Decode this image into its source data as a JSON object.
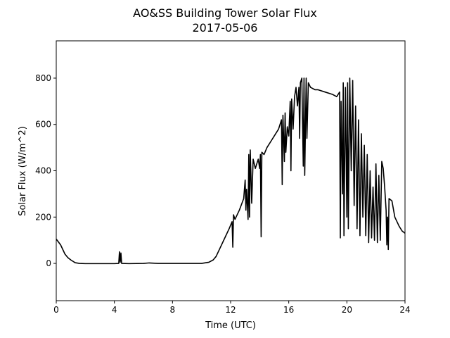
{
  "chart_data": {
    "type": "line",
    "title": "AO&SS Building Tower Solar Flux",
    "subtitle": "2017-05-06",
    "xlabel": "Time (UTC)",
    "ylabel": "Solar Flux (W/m^2)",
    "xlim": [
      0,
      24
    ],
    "xticks": [
      0,
      4,
      8,
      12,
      16,
      20,
      24
    ],
    "ylim": [
      -161,
      961
    ],
    "yticks": [
      0,
      200,
      400,
      600,
      800
    ],
    "color": "#000000",
    "x": [
      0,
      0.3,
      0.6,
      0.8,
      1.0,
      1.3,
      1.6,
      2,
      3,
      4,
      4.3,
      4.35,
      4.4,
      4.45,
      4.5,
      5,
      6,
      6.4,
      7,
      8,
      9,
      10,
      10.5,
      10.8,
      11,
      11.3,
      11.6,
      11.9,
      12.1,
      12.15,
      12.2,
      12.3,
      12.6,
      12.9,
      13.0,
      13.05,
      13.1,
      13.2,
      13.25,
      13.3,
      13.35,
      13.45,
      13.55,
      13.7,
      13.8,
      13.9,
      14.0,
      14.05,
      14.1,
      14.15,
      14.3,
      14.5,
      14.8,
      15.0,
      15.3,
      15.5,
      15.55,
      15.6,
      15.7,
      15.75,
      15.8,
      15.9,
      16.0,
      16.1,
      16.15,
      16.2,
      16.3,
      16.4,
      16.5,
      16.6,
      16.7,
      16.75,
      16.8,
      16.9,
      17.0,
      17.05,
      17.1,
      17.2,
      17.25,
      17.35,
      17.5,
      17.8,
      18.0,
      18.5,
      19.0,
      19.3,
      19.5,
      19.55,
      19.6,
      19.7,
      19.75,
      19.8,
      19.9,
      20.0,
      20.05,
      20.1,
      20.2,
      20.3,
      20.4,
      20.5,
      20.6,
      20.7,
      20.8,
      20.9,
      21.0,
      21.1,
      21.2,
      21.3,
      21.4,
      21.5,
      21.6,
      21.7,
      21.8,
      21.9,
      22.0,
      22.1,
      22.2,
      22.3,
      22.4,
      22.5,
      22.6,
      22.7,
      22.75,
      22.8,
      22.85,
      22.9,
      23.1,
      23.3,
      23.6,
      23.8,
      24.0
    ],
    "values": [
      105,
      80,
      40,
      25,
      15,
      3,
      0,
      -1,
      -1,
      -1,
      0,
      50,
      5,
      45,
      0,
      -1,
      0,
      2,
      0,
      0,
      0,
      0,
      5,
      15,
      30,
      70,
      110,
      150,
      180,
      70,
      210,
      190,
      230,
      280,
      360,
      230,
      320,
      190,
      470,
      200,
      490,
      260,
      450,
      410,
      430,
      450,
      410,
      470,
      115,
      480,
      470,
      500,
      530,
      550,
      580,
      620,
      340,
      640,
      440,
      650,
      480,
      590,
      550,
      700,
      400,
      710,
      580,
      720,
      760,
      680,
      760,
      540,
      780,
      800,
      420,
      800,
      380,
      800,
      540,
      780,
      760,
      750,
      750,
      740,
      730,
      720,
      740,
      110,
      700,
      300,
      780,
      120,
      760,
      200,
      780,
      150,
      800,
      400,
      790,
      250,
      680,
      150,
      620,
      120,
      560,
      200,
      510,
      120,
      470,
      90,
      400,
      110,
      330,
      100,
      430,
      90,
      380,
      100,
      440,
      410,
      330,
      230,
      80,
      200,
      60,
      280,
      270,
      200,
      160,
      140,
      130
    ]
  }
}
